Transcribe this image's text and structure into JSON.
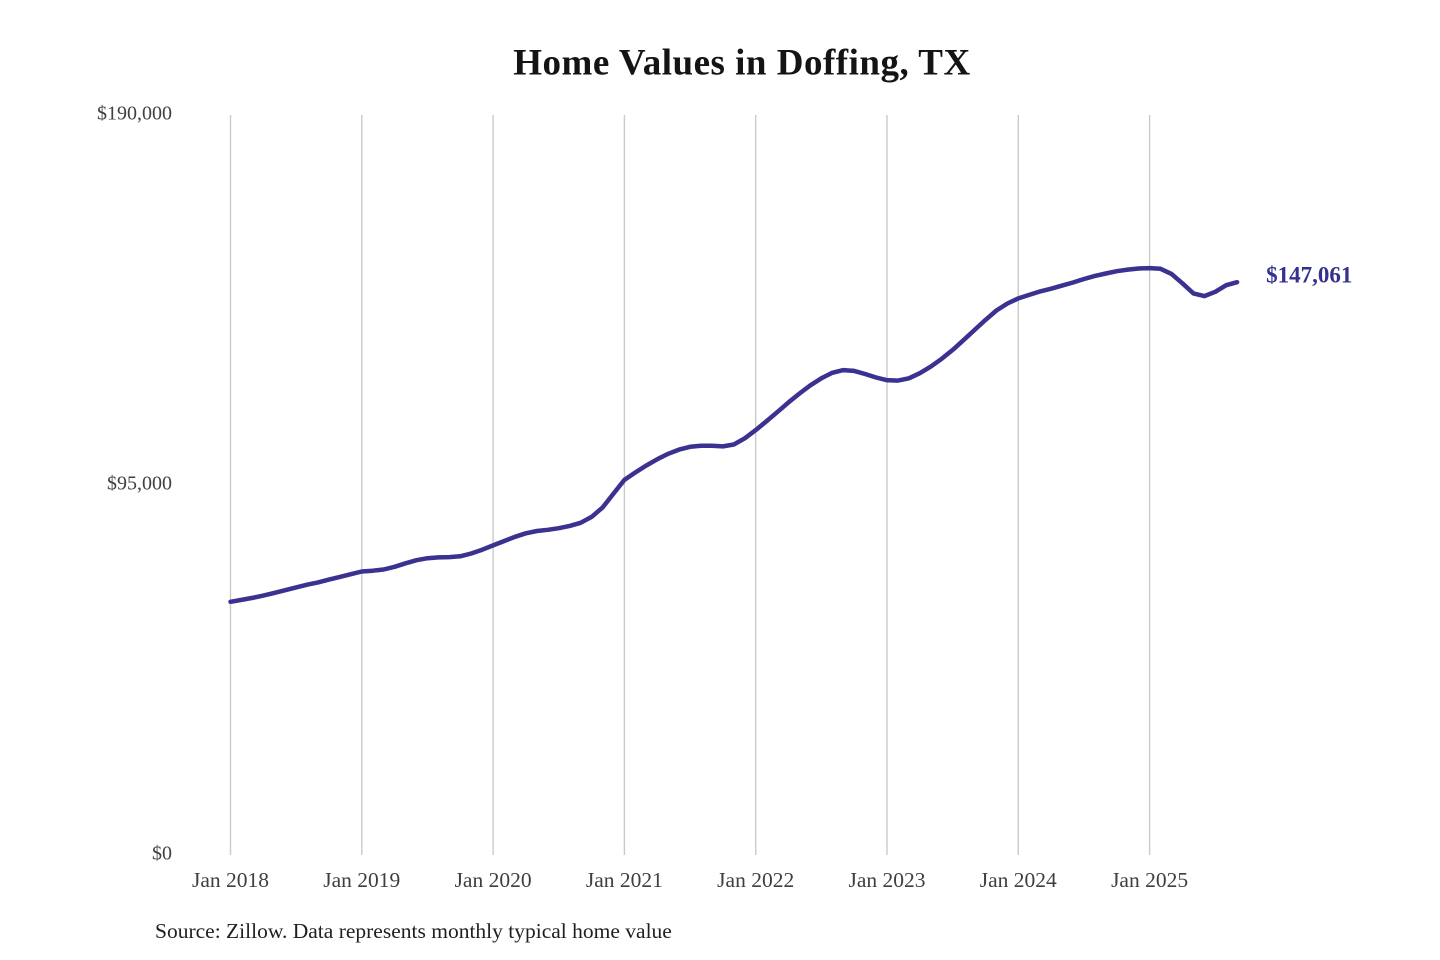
{
  "page": {
    "title": "Home Values in Doffing, TX",
    "source_note": "Source: Zillow. Data represents monthly typical home value"
  },
  "chart_data": {
    "type": "line",
    "title": "Home Values in Doffing, TX",
    "series_name": "Monthly typical home value",
    "unit": "USD",
    "ylim": [
      0,
      190000
    ],
    "grid": "vertical-only",
    "legend": "none",
    "end_label": "$147,061",
    "end_value": 147061,
    "y_ticks": [
      {
        "label": "$0",
        "value": 0
      },
      {
        "label": "$95,000",
        "value": 95000
      },
      {
        "label": "$190,000",
        "value": 190000
      }
    ],
    "x_ticks": [
      {
        "label": "Jan 2018",
        "month_index": 0
      },
      {
        "label": "Jan 2019",
        "month_index": 12
      },
      {
        "label": "Jan 2020",
        "month_index": 24
      },
      {
        "label": "Jan 2021",
        "month_index": 36
      },
      {
        "label": "Jan 2022",
        "month_index": 48
      },
      {
        "label": "Jan 2023",
        "month_index": 60
      },
      {
        "label": "Jan 2024",
        "month_index": 72
      },
      {
        "label": "Jan 2025",
        "month_index": 84
      }
    ],
    "x": [
      "2018-01",
      "2018-02",
      "2018-03",
      "2018-04",
      "2018-05",
      "2018-06",
      "2018-07",
      "2018-08",
      "2018-09",
      "2018-10",
      "2018-11",
      "2018-12",
      "2019-01",
      "2019-02",
      "2019-03",
      "2019-04",
      "2019-05",
      "2019-06",
      "2019-07",
      "2019-08",
      "2019-09",
      "2019-10",
      "2019-11",
      "2019-12",
      "2020-01",
      "2020-02",
      "2020-03",
      "2020-04",
      "2020-05",
      "2020-06",
      "2020-07",
      "2020-08",
      "2020-09",
      "2020-10",
      "2020-11",
      "2020-12",
      "2021-01",
      "2021-02",
      "2021-03",
      "2021-04",
      "2021-05",
      "2021-06",
      "2021-07",
      "2021-08",
      "2021-09",
      "2021-10",
      "2021-11",
      "2021-12",
      "2022-01",
      "2022-02",
      "2022-03",
      "2022-04",
      "2022-05",
      "2022-06",
      "2022-07",
      "2022-08",
      "2022-09",
      "2022-10",
      "2022-11",
      "2022-12",
      "2023-01",
      "2023-02",
      "2023-03",
      "2023-04",
      "2023-05",
      "2023-06",
      "2023-07",
      "2023-08",
      "2023-09",
      "2023-10",
      "2023-11",
      "2023-12",
      "2024-01",
      "2024-02",
      "2024-03",
      "2024-04",
      "2024-05",
      "2024-06",
      "2024-07",
      "2024-08",
      "2024-09",
      "2024-10",
      "2024-11",
      "2024-12",
      "2025-01",
      "2025-02",
      "2025-03",
      "2025-04",
      "2025-05",
      "2025-06",
      "2025-07",
      "2025-08",
      "2025-09"
    ],
    "values": [
      65000,
      65500,
      66000,
      66600,
      67300,
      68000,
      68700,
      69400,
      70000,
      70700,
      71400,
      72100,
      72800,
      73000,
      73300,
      74000,
      74900,
      75700,
      76200,
      76400,
      76500,
      76700,
      77400,
      78400,
      79500,
      80600,
      81700,
      82600,
      83200,
      83500,
      83900,
      84500,
      85300,
      86800,
      89200,
      92800,
      96300,
      98200,
      100000,
      101600,
      103000,
      104100,
      104800,
      105100,
      105100,
      104900,
      105400,
      107000,
      109100,
      111400,
      113800,
      116200,
      118500,
      120600,
      122400,
      123800,
      124500,
      124300,
      123500,
      122600,
      121900,
      121800,
      122400,
      123700,
      125400,
      127400,
      129700,
      132200,
      134800,
      137400,
      139800,
      141600,
      142900,
      143800,
      144700,
      145400,
      146200,
      147000,
      147900,
      148700,
      149300,
      149900,
      150300,
      150600,
      150700,
      150500,
      149200,
      146800,
      144200,
      143500,
      144600,
      146300,
      147061
    ],
    "colors": {
      "line": "#3b3191",
      "end_label": "#33308f",
      "gridline": "#cacaca",
      "tick_text": "#3f3f3f",
      "title_text": "#141414",
      "source_text": "#1f1f1f",
      "background": "#ffffff"
    }
  }
}
